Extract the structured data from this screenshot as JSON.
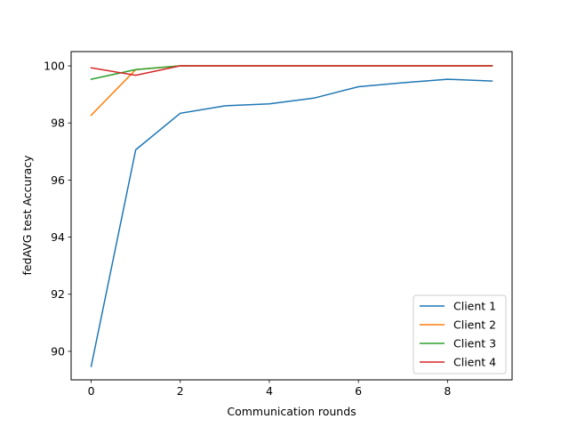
{
  "chart_data": {
    "type": "line",
    "title": "",
    "xlabel": "Communication rounds",
    "ylabel": "fedAVG test Accuracy",
    "x": [
      0,
      1,
      2,
      3,
      4,
      5,
      6,
      7,
      8,
      9
    ],
    "xlim": [
      -0.45,
      9.45
    ],
    "ylim": [
      89.0,
      100.5
    ],
    "xticks": [
      0,
      2,
      4,
      6,
      8
    ],
    "yticks": [
      90,
      92,
      94,
      96,
      98,
      100
    ],
    "xtick_labels": [
      "0",
      "2",
      "4",
      "6",
      "8"
    ],
    "ytick_labels": [
      "90",
      "92",
      "94",
      "96",
      "98",
      "100"
    ],
    "grid": false,
    "legend_position": "lower-right",
    "series": [
      {
        "name": "Client 1",
        "color": "#1f77b4",
        "values": [
          89.47,
          97.06,
          98.34,
          98.6,
          98.67,
          98.87,
          99.27,
          99.41,
          99.53,
          99.47
        ]
      },
      {
        "name": "Client 2",
        "color": "#ff7f0e",
        "values": [
          98.27,
          99.87,
          100.0,
          100.0,
          100.0,
          100.0,
          100.0,
          100.0,
          100.0,
          100.0
        ]
      },
      {
        "name": "Client 3",
        "color": "#2ca02c",
        "values": [
          99.53,
          99.87,
          100.0,
          100.0,
          100.0,
          100.0,
          100.0,
          100.0,
          100.0,
          100.0
        ]
      },
      {
        "name": "Client 4",
        "color": "#d62728",
        "values": [
          99.93,
          99.67,
          100.0,
          100.0,
          100.0,
          100.0,
          100.0,
          100.0,
          100.0,
          100.0
        ]
      }
    ]
  }
}
